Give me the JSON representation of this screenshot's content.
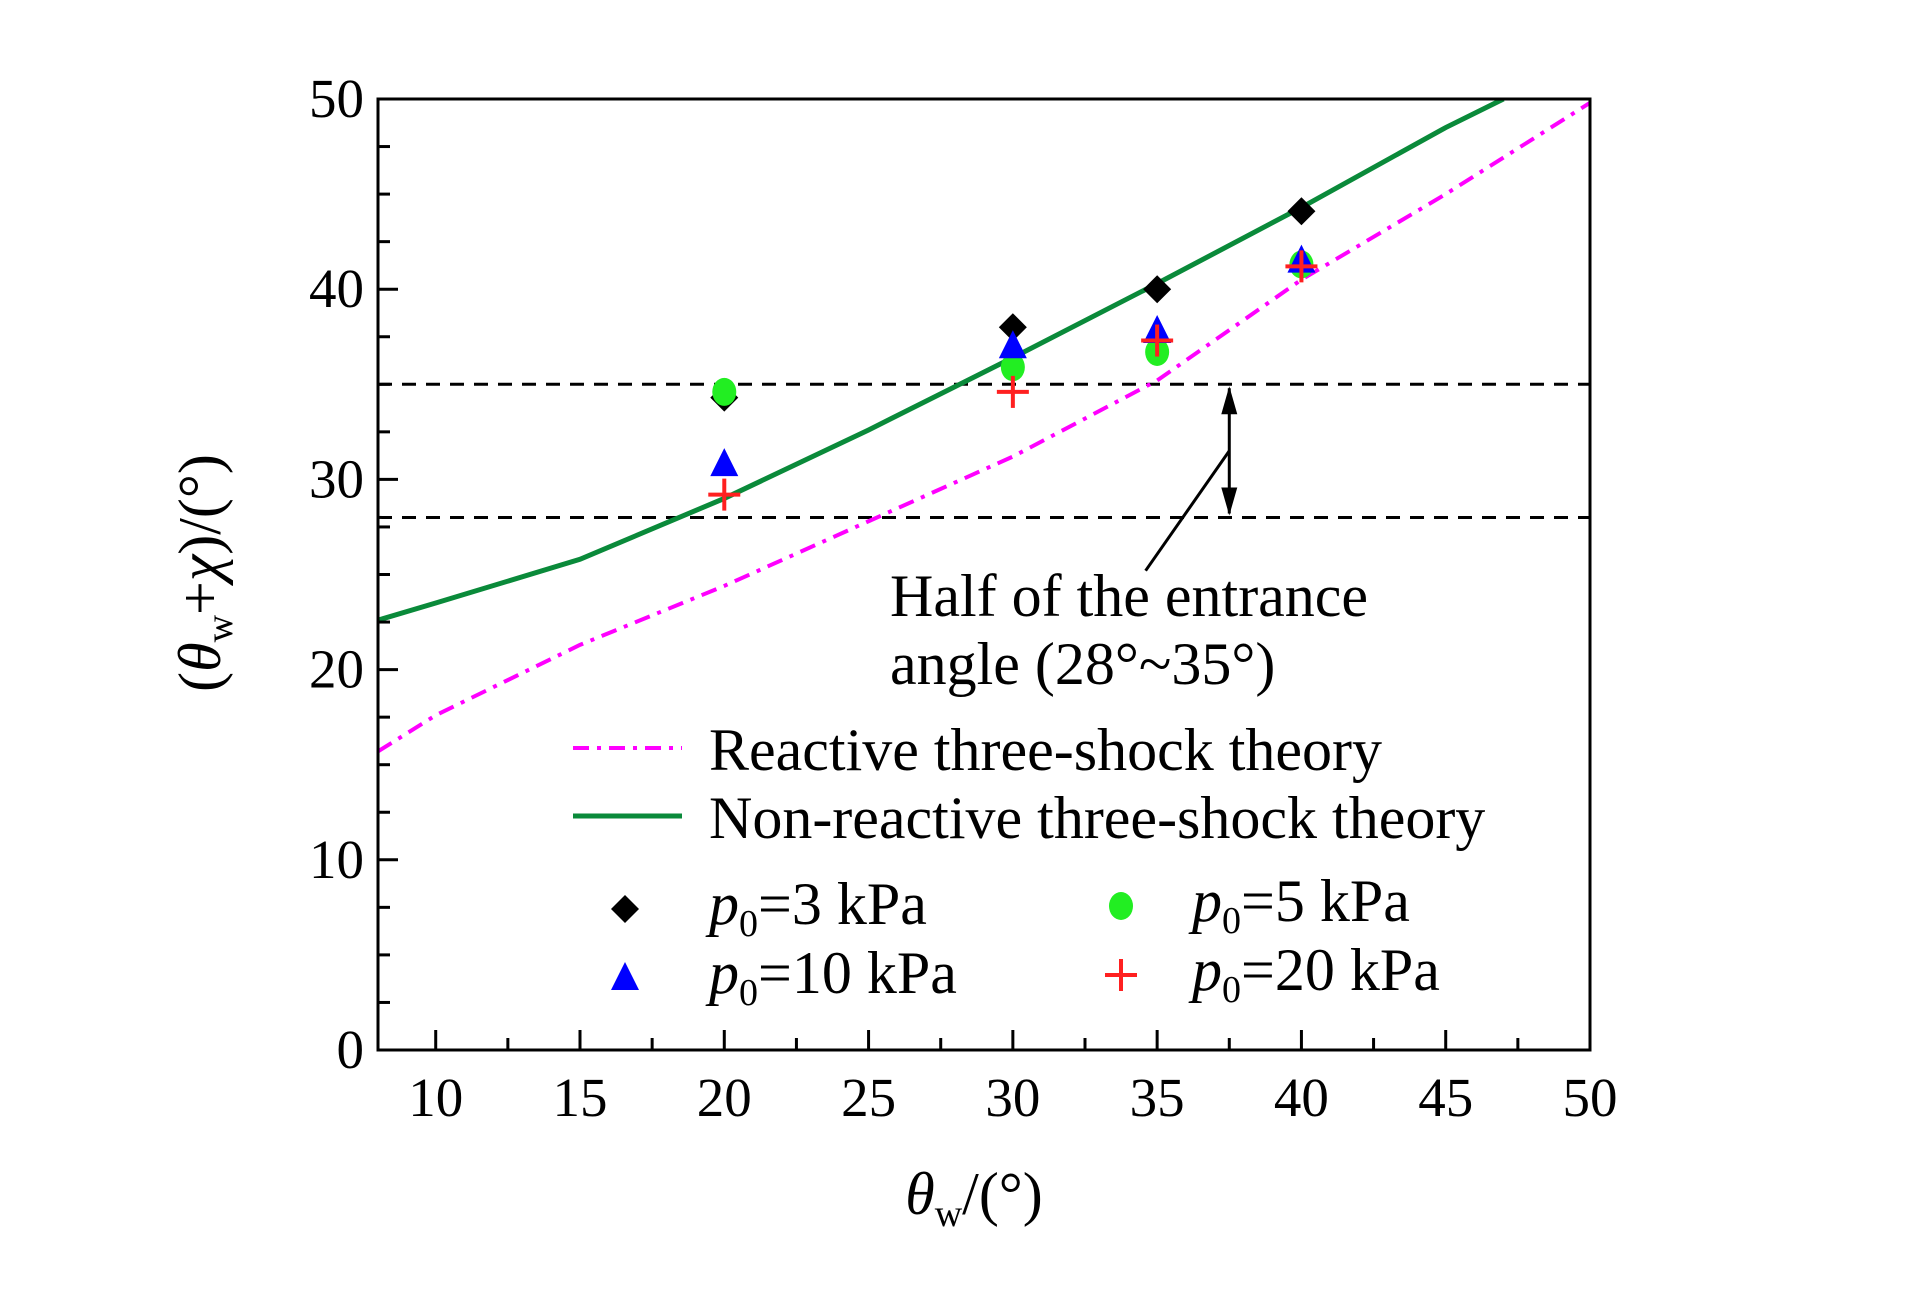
{
  "chart_data": {
    "type": "scatter",
    "xlabel": "θw/(°)",
    "ylabel": "(θw+χ)/(°)",
    "xlim": [
      8,
      50
    ],
    "ylim": [
      0,
      50
    ],
    "xticks": [
      10,
      15,
      20,
      25,
      30,
      35,
      40,
      45,
      50
    ],
    "yticks": [
      0,
      10,
      20,
      30,
      40,
      50
    ],
    "grid": false,
    "legend_placement": "bottom-right (inside)",
    "lines": [
      {
        "name": "Reactive three-shock theory",
        "style": "dash-dot",
        "color": "#ff00ff",
        "x": [
          8,
          10,
          15,
          20,
          25,
          30,
          35,
          40,
          45,
          50
        ],
        "y": [
          15.7,
          17.6,
          21.3,
          24.4,
          27.8,
          31.2,
          35.2,
          40.5,
          45.0,
          49.8
        ]
      },
      {
        "name": "Non-reactive three-shock theory",
        "style": "solid",
        "color": "#0a8a3a",
        "x": [
          8,
          10,
          15,
          20,
          25,
          30,
          35,
          40,
          45,
          47
        ],
        "y": [
          22.6,
          23.5,
          25.8,
          29.0,
          32.6,
          36.4,
          40.3,
          44.3,
          48.5,
          50.0
        ]
      }
    ],
    "series": [
      {
        "name": "p0=3 kPa",
        "marker": "diamond",
        "color": "#000000",
        "x": [
          20,
          30,
          35,
          40
        ],
        "y": [
          34.3,
          38.0,
          40.0,
          44.1
        ]
      },
      {
        "name": "p0=5 kPa",
        "marker": "circle",
        "color": "#22ee22",
        "x": [
          20,
          30,
          35,
          40
        ],
        "y": [
          34.6,
          35.9,
          36.7,
          41.3
        ]
      },
      {
        "name": "p0=10 kPa",
        "marker": "triangle",
        "color": "#0000ff",
        "x": [
          20,
          30,
          35,
          40
        ],
        "y": [
          30.8,
          37.0,
          37.8,
          41.5
        ]
      },
      {
        "name": "p0=20 kPa",
        "marker": "plus",
        "color": "#ff2020",
        "x": [
          20,
          30,
          35,
          40
        ],
        "y": [
          29.2,
          34.6,
          37.3,
          41.2
        ]
      }
    ],
    "reference_lines": [
      35,
      28
    ],
    "annotation": {
      "line1": "Half of the entrance",
      "line2": "angle (28°~35°)",
      "arrow_x": 37.5
    }
  }
}
